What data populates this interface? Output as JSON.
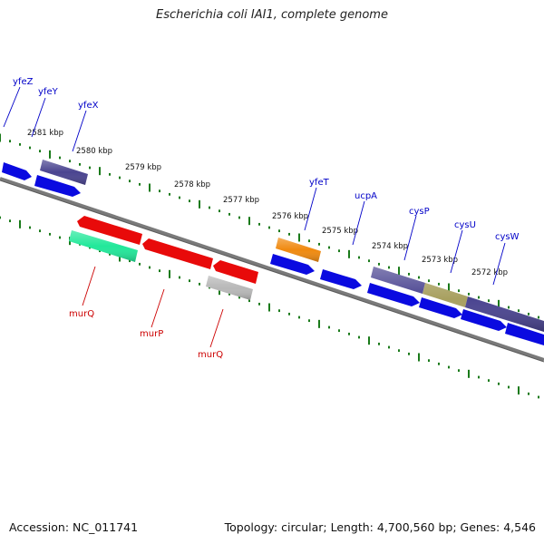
{
  "title": "Escherichia coli IAI1, complete genome",
  "footer": {
    "accession": "Accession: NC_011741",
    "summary": "Topology: circular; Length: 4,700,560 bp; Genes: 4,546"
  },
  "colors": {
    "backbone": "#7a7a7a",
    "tick": "#1a7a1a",
    "blue_gene": "#0a0ae0",
    "purple_gene": "#4a4490",
    "red_gene": "#e80a0a",
    "green_gene": "#22e89a",
    "orange_gene": "#f08a10",
    "gray_gene": "#b8b8b8",
    "khaki_gene": "#a8a060",
    "upper_label": "#0000c8",
    "lower_label": "#cc0000"
  },
  "kbp_labels": [
    "2581 kbp",
    "2580 kbp",
    "2579 kbp",
    "2578 kbp",
    "2577 kbp",
    "2576 kbp",
    "2575 kbp",
    "2574 kbp",
    "2573 kbp",
    "2572 kbp"
  ],
  "upper_genes": [
    "yfeZ",
    "yfeY",
    "yfeX",
    "yfeT",
    "ucpA",
    "cysP",
    "cysU",
    "cysW"
  ],
  "lower_genes": [
    "murQ",
    "murP",
    "murQ"
  ]
}
